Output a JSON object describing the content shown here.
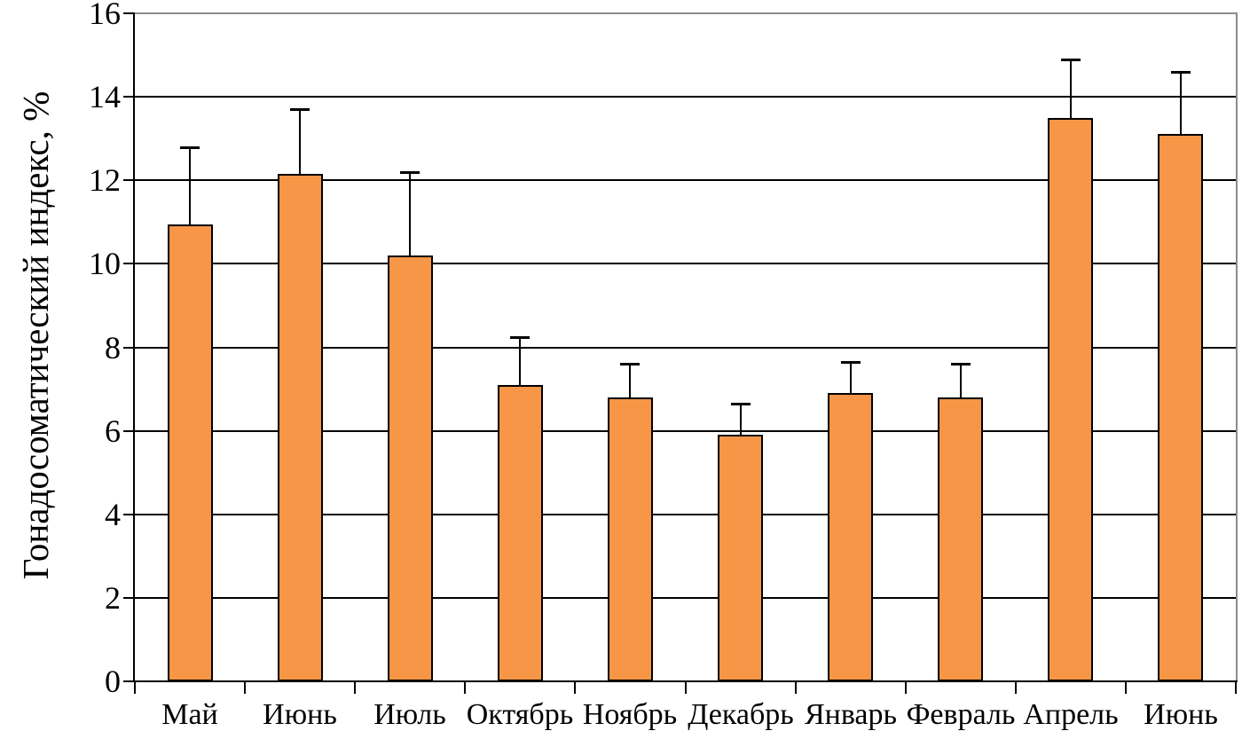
{
  "chart_data": {
    "type": "bar",
    "title": "",
    "xlabel": "",
    "ylabel": "Гонадосоматический индекс, %",
    "ylim": [
      0,
      16
    ],
    "yticks": [
      0,
      2,
      4,
      6,
      8,
      10,
      12,
      14,
      16
    ],
    "grid": true,
    "legend_position": "none",
    "categories": [
      "Май",
      "Июнь",
      "Июль",
      "Октябрь",
      "Ноябрь",
      "Декабрь",
      "Январь",
      "Февраль",
      "Апрель",
      "Июнь"
    ],
    "values": [
      10.95,
      12.15,
      10.2,
      7.1,
      6.8,
      5.9,
      6.9,
      6.8,
      13.5,
      13.1
    ],
    "error_plus": [
      1.85,
      1.55,
      2.0,
      1.15,
      0.8,
      0.75,
      0.75,
      0.8,
      1.4,
      1.5
    ],
    "bar_color": "#F79646",
    "bar_border_color": "#000000",
    "gridline_color": "#000000",
    "frame_color": "#8C8C8C",
    "axis_color": "#000000"
  }
}
